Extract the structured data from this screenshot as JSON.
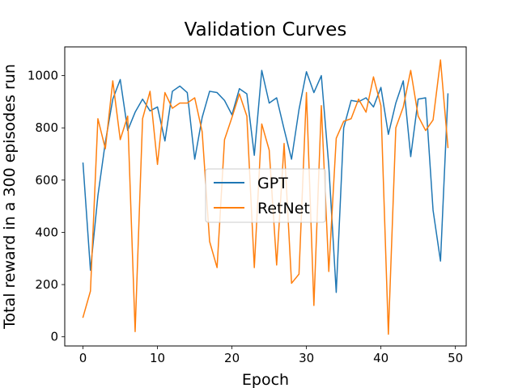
{
  "chart_data": {
    "type": "line",
    "title": "Validation Curves",
    "xlabel": "Epoch",
    "ylabel": "Total reward in a 300 episodes run",
    "xlim": [
      -2.45,
      51.45
    ],
    "ylim": [
      -35,
      1110
    ],
    "xticks": [
      0,
      10,
      20,
      30,
      40,
      50
    ],
    "yticks": [
      0,
      200,
      400,
      600,
      800,
      1000
    ],
    "grid": false,
    "legend_position": "center",
    "x": [
      0,
      1,
      2,
      3,
      4,
      5,
      6,
      7,
      8,
      9,
      10,
      11,
      12,
      13,
      14,
      15,
      16,
      17,
      18,
      19,
      20,
      21,
      22,
      23,
      24,
      25,
      26,
      27,
      28,
      29,
      30,
      31,
      32,
      33,
      34,
      35,
      36,
      37,
      38,
      39,
      40,
      41,
      42,
      43,
      44,
      45,
      46,
      47,
      48,
      49
    ],
    "series": [
      {
        "name": "GPT",
        "color": "#1f77b4",
        "values": [
          665,
          255,
          540,
          745,
          910,
          985,
          790,
          860,
          910,
          865,
          880,
          750,
          940,
          960,
          935,
          680,
          840,
          940,
          935,
          905,
          850,
          950,
          930,
          695,
          1020,
          895,
          915,
          795,
          680,
          870,
          1015,
          935,
          1000,
          655,
          170,
          800,
          905,
          900,
          915,
          880,
          955,
          775,
          895,
          980,
          690,
          910,
          915,
          485,
          290,
          930
        ]
      },
      {
        "name": "RetNet",
        "color": "#ff7f0e",
        "values": [
          75,
          175,
          835,
          720,
          980,
          755,
          845,
          20,
          835,
          940,
          660,
          935,
          875,
          895,
          895,
          915,
          785,
          365,
          265,
          755,
          840,
          930,
          845,
          265,
          815,
          715,
          275,
          740,
          205,
          240,
          935,
          120,
          885,
          250,
          760,
          825,
          835,
          910,
          860,
          995,
          885,
          10,
          800,
          880,
          1020,
          845,
          790,
          830,
          1060,
          725
        ]
      }
    ]
  }
}
